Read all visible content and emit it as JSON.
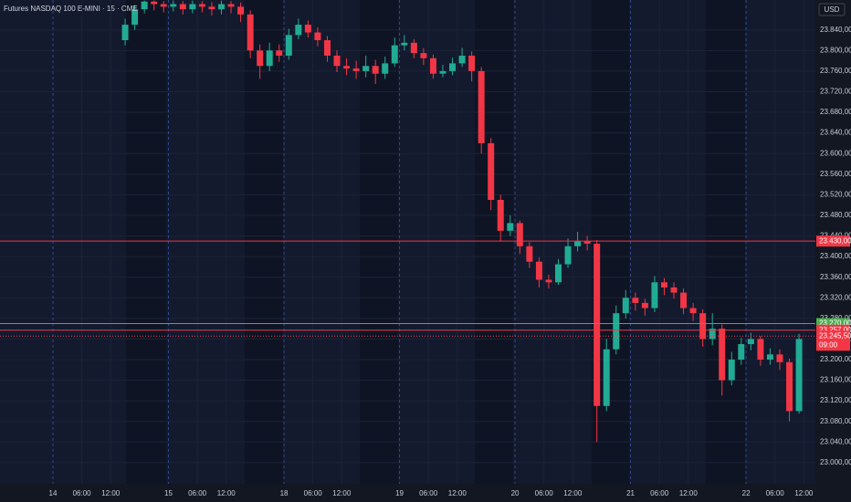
{
  "chart_data": {
    "type": "candlestick",
    "title": "Futures NASDAQ 100 E-MINI · 15 · CME",
    "currency": "USD",
    "x": [
      15,
      17,
      19,
      21,
      23,
      25,
      27,
      29,
      31,
      33,
      35,
      37,
      39,
      41,
      43,
      45,
      47,
      49,
      51,
      53,
      55,
      57,
      59,
      61,
      63,
      65,
      67,
      69,
      71,
      73,
      75,
      77,
      79,
      81,
      83,
      85,
      87,
      89,
      91,
      93,
      95,
      97,
      99,
      101,
      103,
      105,
      107,
      109,
      111,
      113,
      115,
      117,
      119,
      121,
      123,
      125,
      127,
      129,
      131,
      133,
      135,
      137,
      139,
      141,
      143,
      145,
      147,
      149,
      151,
      153,
      155
    ],
    "open": [
      23820,
      23850,
      23880,
      23895,
      23890,
      23885,
      23890,
      23880,
      23890,
      23885,
      23880,
      23890,
      23885,
      23870,
      23800,
      23770,
      23800,
      23790,
      23830,
      23850,
      23835,
      23820,
      23790,
      23770,
      23765,
      23760,
      23770,
      23755,
      23775,
      23810,
      23815,
      23795,
      23785,
      23755,
      23760,
      23775,
      23790,
      23760,
      23620,
      23510,
      23450,
      23465,
      23420,
      23390,
      23355,
      23350,
      23385,
      23420,
      23430,
      23425,
      23110,
      23220,
      23290,
      23320,
      23310,
      23300,
      23350,
      23340,
      23330,
      23300,
      23290,
      23240,
      23260,
      23160,
      23200,
      23230,
      23240,
      23200,
      23210,
      23195,
      23100
    ],
    "high": [
      23862,
      23888,
      23897,
      23897,
      23896,
      23897,
      23896,
      23897,
      23896,
      23894,
      23897,
      23896,
      23893,
      23878,
      23812,
      23815,
      23812,
      23842,
      23862,
      23858,
      23845,
      23828,
      23800,
      23785,
      23780,
      23790,
      23782,
      23788,
      23825,
      23830,
      23822,
      23805,
      23792,
      23772,
      23786,
      23805,
      23798,
      23768,
      23630,
      23520,
      23480,
      23470,
      23428,
      23398,
      23365,
      23395,
      23435,
      23448,
      23440,
      23432,
      23240,
      23305,
      23335,
      23330,
      23318,
      23362,
      23358,
      23350,
      23338,
      23310,
      23298,
      23290,
      23268,
      23215,
      23242,
      23252,
      23246,
      23222,
      23220,
      23202,
      23250
    ],
    "low": [
      23810,
      23840,
      23872,
      23878,
      23874,
      23876,
      23870,
      23872,
      23874,
      23868,
      23870,
      23872,
      23855,
      23785,
      23745,
      23760,
      23778,
      23782,
      23822,
      23825,
      23808,
      23778,
      23758,
      23752,
      23745,
      23748,
      23735,
      23745,
      23768,
      23800,
      23785,
      23772,
      23745,
      23748,
      23752,
      23768,
      23740,
      23600,
      23490,
      23430,
      23440,
      23405,
      23378,
      23340,
      23338,
      23345,
      23378,
      23410,
      23412,
      23040,
      23100,
      23210,
      23280,
      23295,
      23285,
      23292,
      23325,
      23318,
      23288,
      23275,
      23225,
      23228,
      23130,
      23150,
      23190,
      23218,
      23188,
      23190,
      23180,
      23080,
      23095
    ],
    "close": [
      23850,
      23880,
      23895,
      23890,
      23885,
      23890,
      23880,
      23890,
      23885,
      23880,
      23890,
      23885,
      23870,
      23800,
      23770,
      23800,
      23790,
      23830,
      23850,
      23835,
      23820,
      23790,
      23770,
      23765,
      23760,
      23770,
      23755,
      23775,
      23810,
      23815,
      23795,
      23785,
      23755,
      23760,
      23775,
      23790,
      23760,
      23620,
      23510,
      23450,
      23465,
      23420,
      23390,
      23355,
      23350,
      23385,
      23420,
      23430,
      23425,
      23110,
      23220,
      23290,
      23320,
      23310,
      23300,
      23350,
      23340,
      23330,
      23300,
      23290,
      23240,
      23260,
      23160,
      23200,
      23230,
      23240,
      23200,
      23210,
      23195,
      23100,
      23240
    ],
    "up_color": "#22ab94",
    "down_color": "#f23645",
    "xlim": [
      -11,
      158.4
    ],
    "xticks": [
      {
        "value": 0,
        "label": "14"
      },
      {
        "value": 6,
        "label": "06:00"
      },
      {
        "value": 12,
        "label": "12:00"
      },
      {
        "value": 24,
        "label": "15"
      },
      {
        "value": 30,
        "label": "06:00"
      },
      {
        "value": 36,
        "label": "12:00"
      },
      {
        "value": 48,
        "label": "18"
      },
      {
        "value": 54,
        "label": "06:00"
      },
      {
        "value": 60,
        "label": "12:00"
      },
      {
        "value": 72,
        "label": "19"
      },
      {
        "value": 78,
        "label": "06:00"
      },
      {
        "value": 84,
        "label": "12:00"
      },
      {
        "value": 96,
        "label": "20"
      },
      {
        "value": 102,
        "label": "06:00"
      },
      {
        "value": 108,
        "label": "12:00"
      },
      {
        "value": 120,
        "label": "21"
      },
      {
        "value": 126,
        "label": "06:00"
      },
      {
        "value": 132,
        "label": "12:00"
      },
      {
        "value": 144,
        "label": "22"
      },
      {
        "value": 150,
        "label": "06:00"
      },
      {
        "value": 156,
        "label": "12:00"
      }
    ],
    "ylim": [
      22959,
      23898
    ],
    "yticks": [
      {
        "value": 23000,
        "label": "23.000,00"
      },
      {
        "value": 23040,
        "label": "23.040,00"
      },
      {
        "value": 23080,
        "label": "23.080,00"
      },
      {
        "value": 23120,
        "label": "23.120,00"
      },
      {
        "value": 23160,
        "label": "23.160,00"
      },
      {
        "value": 23200,
        "label": "23.200,00"
      },
      {
        "value": 23240,
        "label": "23.240,00"
      },
      {
        "value": 23280,
        "label": "23.280,00"
      },
      {
        "value": 23320,
        "label": "23.320,00"
      },
      {
        "value": 23360,
        "label": "23.360,00"
      },
      {
        "value": 23400,
        "label": "23.400,00"
      },
      {
        "value": 23440,
        "label": "23.440,00"
      },
      {
        "value": 23480,
        "label": "23.480,00"
      },
      {
        "value": 23520,
        "label": "23.520,00"
      },
      {
        "value": 23560,
        "label": "23.560,00"
      },
      {
        "value": 23600,
        "label": "23.600,00"
      },
      {
        "value": 23640,
        "label": "23.640,00"
      },
      {
        "value": 23680,
        "label": "23.680,00"
      },
      {
        "value": 23720,
        "label": "23.720,00"
      },
      {
        "value": 23760,
        "label": "23.760,00"
      },
      {
        "value": 23800,
        "label": "23.800,00"
      },
      {
        "value": 23840,
        "label": "23.840,00"
      }
    ],
    "levels": [
      {
        "value": 23430,
        "label": "23.430,00",
        "color": "#f23645"
      },
      {
        "value": 23270,
        "label": "23.270,00",
        "color": "#4caf50"
      },
      {
        "value": 23257,
        "label": "23.257,00",
        "color": "#f23645"
      }
    ],
    "last_price": {
      "value": 23245.5,
      "label": "23.245,50",
      "time": "09:00",
      "color": "#f23645"
    }
  }
}
